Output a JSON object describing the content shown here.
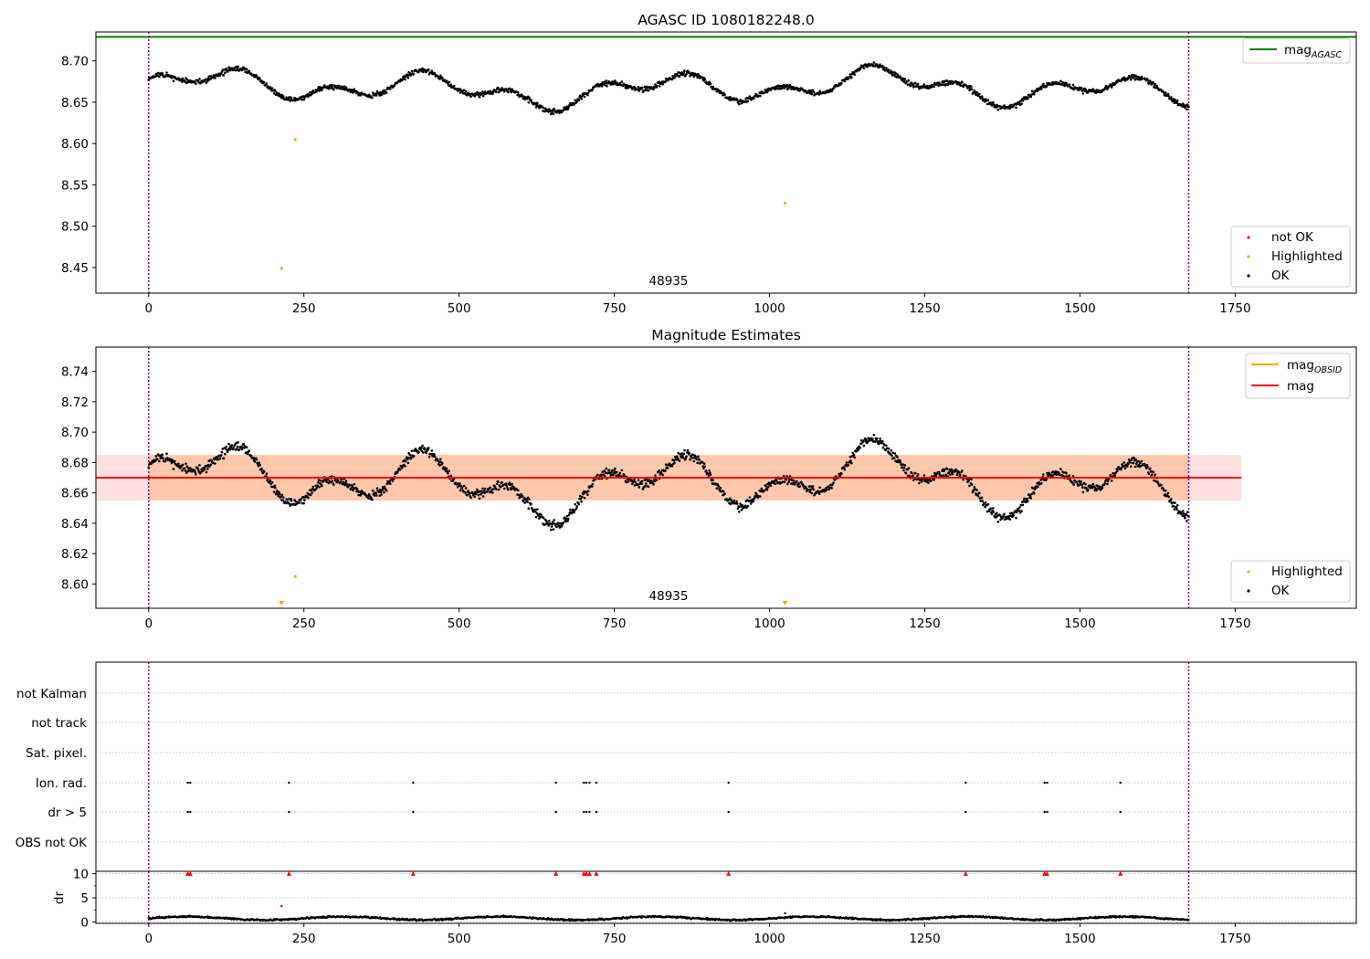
{
  "chart_data": [
    {
      "type": "scatter",
      "title": "AGASC ID 1080182248.0",
      "xlim": [
        -85,
        1945
      ],
      "ylim": [
        8.419,
        8.735
      ],
      "xticks": [
        0,
        250,
        500,
        750,
        1000,
        1250,
        1500,
        1750
      ],
      "yticks": [
        8.45,
        8.5,
        8.55,
        8.6,
        8.65,
        8.7
      ],
      "ytick_labels": [
        "8.45",
        "8.50",
        "8.55",
        "8.60",
        "8.65",
        "8.70"
      ],
      "grid": false,
      "obsid_label": "48935",
      "vlines": [
        0,
        1675
      ],
      "hlines": [
        {
          "name": "mag_AGASC",
          "y": 8.729,
          "color": "#008000"
        }
      ],
      "series": [
        {
          "name": "OK",
          "color": "#000000",
          "description": "about 1675 points, x 0 to 1675, y between 8.635 and 8.705"
        },
        {
          "name": "Highlighted",
          "color": "#ffa500",
          "points": [
            [
              214,
              8.449
            ],
            [
              236,
              8.605
            ],
            [
              1025,
              8.528
            ]
          ]
        }
      ],
      "legends": {
        "line": {
          "label": "mag",
          "sub": "AGASC",
          "color": "#008000",
          "position": "upper right"
        },
        "points": {
          "position": "lower right",
          "entries": [
            {
              "label": "not OK",
              "color": "#ff0000"
            },
            {
              "label": "Highlighted",
              "color": "#ffa500"
            },
            {
              "label": "OK",
              "color": "#000000"
            }
          ]
        }
      }
    },
    {
      "type": "scatter",
      "title": "Magnitude Estimates",
      "xlim": [
        -85,
        1945
      ],
      "ylim": [
        8.584,
        8.756
      ],
      "xticks": [
        0,
        250,
        500,
        750,
        1000,
        1250,
        1500,
        1750
      ],
      "yticks": [
        8.6,
        8.62,
        8.64,
        8.66,
        8.68,
        8.7,
        8.72,
        8.74
      ],
      "ytick_labels": [
        "8.60",
        "8.62",
        "8.64",
        "8.66",
        "8.68",
        "8.70",
        "8.72",
        "8.74"
      ],
      "grid": false,
      "obsid_label": "48935",
      "vlines": [
        0,
        1675
      ],
      "bands": [
        {
          "x": [
            0,
            1675
          ],
          "y": [
            8.655,
            8.685
          ],
          "color": "#ff7f0e",
          "alpha": 0.25
        },
        {
          "x": [
            -85,
            1760
          ],
          "y": [
            8.655,
            8.685
          ],
          "color": "#ff0000",
          "alpha": 0.12
        }
      ],
      "hlines": [
        {
          "name": "mag_OBSID",
          "y": 8.67,
          "color": "#ffa500",
          "x": [
            0,
            1675
          ]
        },
        {
          "name": "mag",
          "y": 8.67,
          "color": "#ff0000",
          "x": [
            -85,
            1760
          ]
        }
      ],
      "series": [
        {
          "name": "OK",
          "color": "#000000",
          "description": "about 1675 points, x 0 to 1675, y between 8.634 and 8.705"
        },
        {
          "name": "Highlighted",
          "color": "#ffa500",
          "points": [
            [
              236,
              8.605
            ]
          ],
          "off_scale_markers_x": [
            214,
            1025
          ]
        }
      ],
      "legends": {
        "line": {
          "position": "upper right",
          "entries": [
            {
              "label": "mag",
              "sub": "OBSID",
              "color": "#ffa500"
            },
            {
              "label": "mag",
              "sub": "",
              "color": "#ff0000"
            }
          ]
        },
        "points": {
          "position": "lower right",
          "entries": [
            {
              "label": "Highlighted",
              "color": "#ffa500"
            },
            {
              "label": "OK",
              "color": "#000000"
            }
          ]
        }
      }
    },
    {
      "type": "scatter",
      "title": "",
      "xlim": [
        -85,
        1945
      ],
      "grid": true,
      "vlines": [
        0,
        1675
      ],
      "flag_rows": [
        "not Kalman",
        "not track",
        "Sat. pixel.",
        "Ion. rad.",
        "dr > 5",
        "OBS not OK"
      ],
      "flag_points": {
        "Ion. rad.": [
          63,
          67,
          226,
          426,
          656,
          701,
          705,
          710,
          721,
          934,
          1316,
          1443,
          1447,
          1565
        ],
        "dr > 5": [
          63,
          67,
          226,
          426,
          656,
          701,
          705,
          710,
          721,
          934,
          1316,
          1443,
          1447,
          1565
        ]
      }
    },
    {
      "type": "scatter",
      "title": "",
      "xlim": [
        -85,
        1945
      ],
      "ylim": [
        -0.3,
        10.5
      ],
      "xticks": [
        0,
        250,
        500,
        750,
        1000,
        1250,
        1500,
        1750
      ],
      "yticks": [
        0,
        5,
        10
      ],
      "ytick_labels": [
        "0",
        "5",
        "10"
      ],
      "ylabel": "dr",
      "grid": true,
      "vlines": [
        0,
        1675
      ],
      "clipped_markers_x": [
        63,
        67,
        226,
        426,
        656,
        701,
        705,
        710,
        721,
        934,
        1316,
        1443,
        1447,
        1565
      ],
      "series": [
        {
          "name": "dr",
          "color": "#000000",
          "description": "about 1675 points, x 0 to 1675, y mostly between 0 and 1.5"
        },
        {
          "name": "outliers",
          "color": "#ff0000",
          "points": [
            [
              214,
              3.3
            ]
          ]
        }
      ],
      "extra_points": [
        [
          1025,
          1.8
        ]
      ]
    }
  ]
}
